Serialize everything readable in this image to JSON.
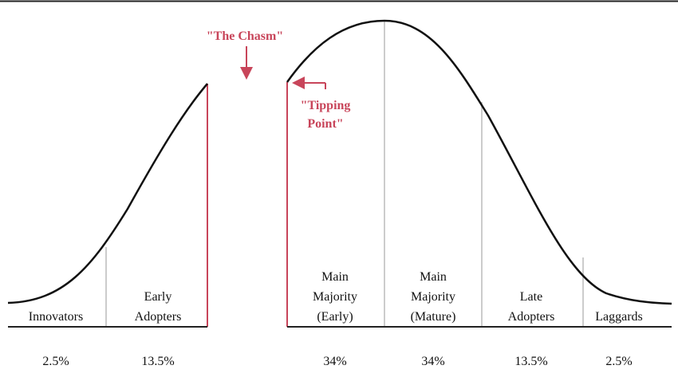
{
  "annotations": {
    "chasm": "\"The Chasm\"",
    "tipping_point": [
      "\"Tipping",
      "Point\""
    ]
  },
  "segments": [
    {
      "label": [
        "Innovators"
      ],
      "share": "2.5%"
    },
    {
      "label": [
        "Early",
        "Adopters"
      ],
      "share": "13.5%"
    },
    {
      "label": [
        "Main",
        "Majority",
        "(Early)"
      ],
      "share": "34%"
    },
    {
      "label": [
        "Main",
        "Majority",
        "(Mature)"
      ],
      "share": "34%"
    },
    {
      "label": [
        "Late",
        "Adopters"
      ],
      "share": "13.5%"
    },
    {
      "label": [
        "Laggards"
      ],
      "share": "2.5%"
    }
  ]
}
